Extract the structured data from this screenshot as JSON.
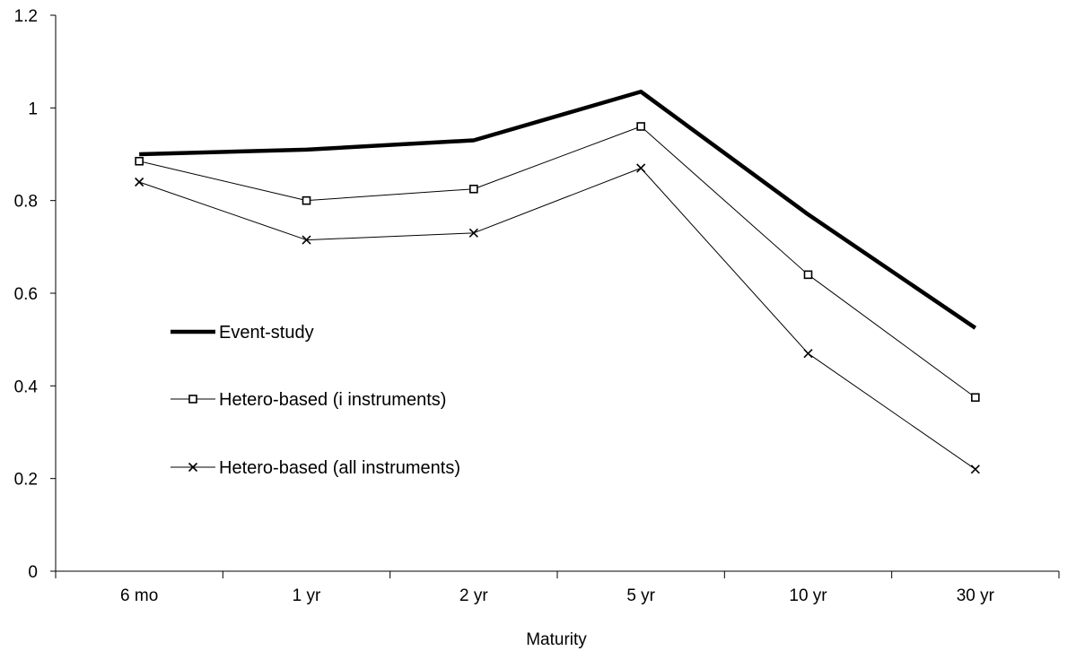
{
  "chart_data": {
    "type": "line",
    "title": "",
    "xlabel": "Maturity",
    "ylabel": "",
    "categories": [
      "6 mo",
      "1 yr",
      "2 yr",
      "5 yr",
      "10 yr",
      "30 yr"
    ],
    "ylim": [
      0,
      1.2
    ],
    "yticks": [
      0,
      0.2,
      0.4,
      0.6,
      0.8,
      1,
      1.2
    ],
    "ytick_labels": [
      "0",
      "0.2",
      "0.4",
      "0.6",
      "0.8",
      "1",
      "1.2"
    ],
    "grid": false,
    "legend_position": "left-center",
    "series": [
      {
        "name": "Event-study",
        "values": [
          0.9,
          0.91,
          0.93,
          1.035,
          0.77,
          0.525
        ],
        "color": "#000000",
        "marker": "none",
        "line_weight": "heavy"
      },
      {
        "name": "Hetero-based (i instruments)",
        "values": [
          0.885,
          0.8,
          0.825,
          0.96,
          0.64,
          0.375
        ],
        "color": "#000000",
        "marker": "square",
        "line_weight": "thin"
      },
      {
        "name": "Hetero-based (all instruments)",
        "values": [
          0.84,
          0.715,
          0.73,
          0.87,
          0.47,
          0.22
        ],
        "color": "#000000",
        "marker": "x",
        "line_weight": "thin"
      }
    ]
  }
}
